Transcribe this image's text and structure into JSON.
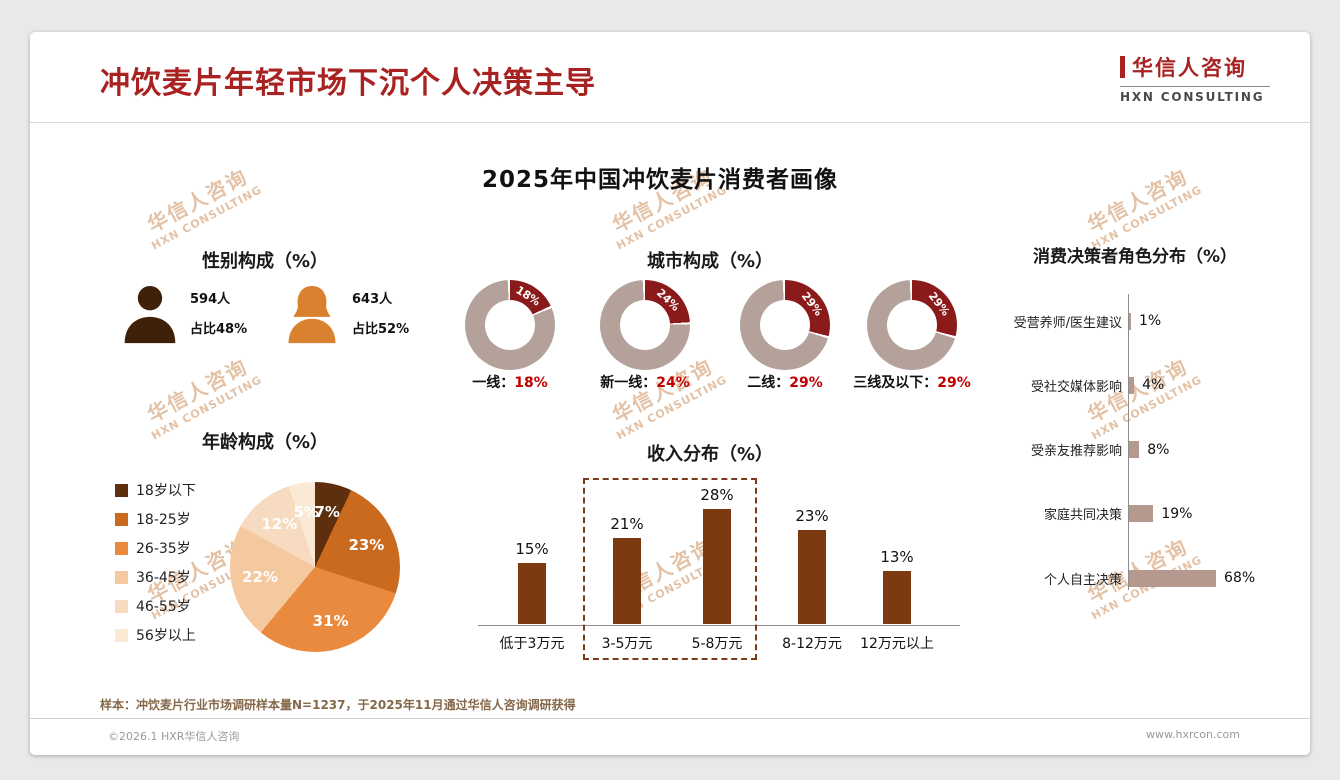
{
  "page": {
    "title": "冲饮麦片年轻市场下沉个人决策主导",
    "logo": {
      "zh": "华信人咨询",
      "en": "HXN CONSULTING"
    },
    "main_title": "2025年中国冲饮麦片消费者画像",
    "footnote": "样本：冲饮麦片行业市场调研样本量N=1237，于2025年11月通过华信人咨询调研获得",
    "copyright": "©2026.1 HXR华信人咨询",
    "website": "www.hxrcon.com",
    "watermark": {
      "zh": "华信人咨询",
      "en": "HXN CONSULTING"
    }
  },
  "colors": {
    "title_red": "#a82222",
    "accent_red": "#c00000",
    "donut_segment": "#8b1b1b",
    "donut_ring": "#b3a19a",
    "income_bar": "#7c3a10",
    "decision_bar": "#b5988e",
    "male_icon": "#3f2008",
    "female_icon": "#d9812e",
    "watermark": "#c8854e"
  },
  "chart_data": [
    {
      "type": "pictogram",
      "title": "性别构成（%）",
      "items": [
        {
          "gender": "男",
          "count": "594人",
          "share": "占比48%",
          "color": "#3f2008"
        },
        {
          "gender": "女",
          "count": "643人",
          "share": "占比52%",
          "color": "#d9812e"
        }
      ]
    },
    {
      "type": "donut",
      "title": "城市构成（%）",
      "segment_color": "#8b1b1b",
      "ring_color": "#b3a19a",
      "items": [
        {
          "label": "一线：",
          "value": 18,
          "display": "18%"
        },
        {
          "label": "新一线：",
          "value": 24,
          "display": "24%"
        },
        {
          "label": "二线：",
          "value": 29,
          "display": "29%"
        },
        {
          "label": "三线及以下：",
          "value": 29,
          "display": "29%"
        }
      ]
    },
    {
      "type": "pie",
      "title": "年龄构成（%）",
      "slices": [
        {
          "label": "18岁以下",
          "value": 7,
          "display": "7%",
          "color": "#5e2f0d"
        },
        {
          "label": "18-25岁",
          "value": 23,
          "display": "23%",
          "color": "#c96a1f"
        },
        {
          "label": "26-35岁",
          "value": 31,
          "display": "31%",
          "color": "#e98a3e"
        },
        {
          "label": "36-45岁",
          "value": 22,
          "display": "22%",
          "color": "#f4c9a0"
        },
        {
          "label": "46-55岁",
          "value": 12,
          "display": "12%",
          "color": "#f7dbc0"
        },
        {
          "label": "56岁以上",
          "value": 5,
          "display": "5%",
          "color": "#fae9d5"
        }
      ]
    },
    {
      "type": "bar",
      "title": "收入分布（%）",
      "bar_color": "#7c3a10",
      "categories": [
        "低于3万元",
        "3-5万元",
        "5-8万元",
        "8-12万元",
        "12万元以上"
      ],
      "values": [
        15,
        21,
        28,
        23,
        13
      ],
      "displays": [
        "15%",
        "21%",
        "28%",
        "23%",
        "13%"
      ],
      "highlight_categories": [
        "3-5万元",
        "5-8万元"
      ],
      "ylim": [
        0,
        30
      ]
    },
    {
      "type": "hbar",
      "title": "消费决策者角色分布（%）",
      "bar_color": "#b5988e",
      "categories": [
        "受营养师/医生建议",
        "受社交媒体影响",
        "受亲友推荐影响",
        "家庭共同决策",
        "个人自主决策"
      ],
      "values": [
        1,
        4,
        8,
        19,
        68
      ],
      "displays": [
        "1%",
        "4%",
        "8%",
        "19%",
        "68%"
      ],
      "xlim": [
        0,
        70
      ]
    }
  ]
}
